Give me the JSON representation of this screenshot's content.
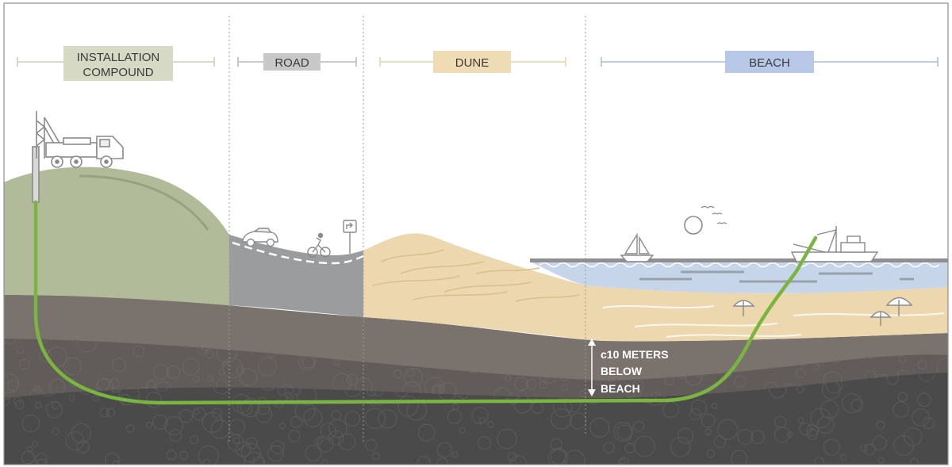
{
  "zones": [
    {
      "lines": [
        "INSTALLATION",
        "COMPOUND"
      ],
      "fill": "#d6d9c4",
      "line_color": "#c9cdb4"
    },
    {
      "lines": [
        "ROAD"
      ],
      "fill": "#c8c8c8",
      "line_color": "#b8b8b8"
    },
    {
      "lines": [
        "DUNE"
      ],
      "fill": "#f0dcb4",
      "line_color": "#e8d2a6"
    },
    {
      "lines": [
        "BEACH"
      ],
      "fill": "#b8c8e8",
      "line_color": "#a8bce2"
    }
  ],
  "depth_note": {
    "lines": [
      "c10 METERS",
      "BELOW",
      "BEACH"
    ]
  },
  "colors": {
    "hill": "#b1bb9a",
    "road": "#9a9c9e",
    "dune": "#ecd7ae",
    "sea": "#c7d5ea",
    "top_soil": "#7a726d",
    "mid_soil": "#615c59",
    "deep_soil": "#4b4a4a",
    "cable": "#7ab540",
    "outline": "#8a8a8a"
  }
}
